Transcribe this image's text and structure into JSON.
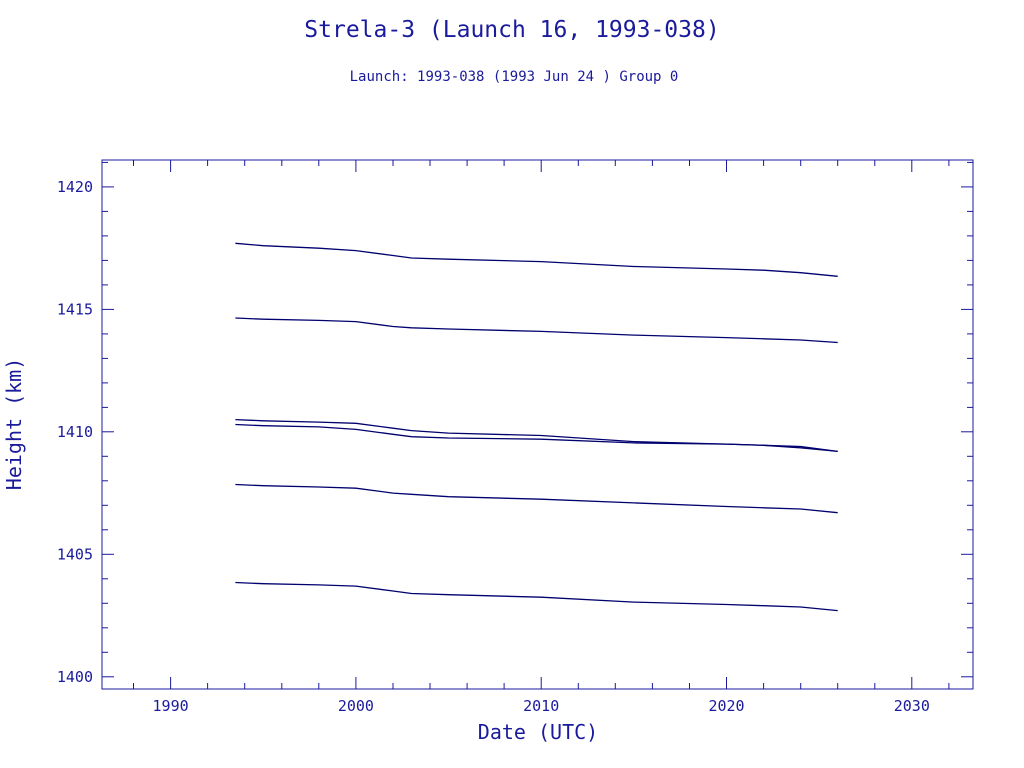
{
  "chart_data": {
    "type": "line",
    "title": "Strela-3 (Launch 16, 1993-038)",
    "subtitle": "Launch: 1993-038  (1993 Jun 24 )  Group 0",
    "xlabel": "Date (UTC)",
    "ylabel": "Height (km)",
    "xlim": [
      1986.3,
      2033.3
    ],
    "ylim": [
      1399.5,
      1421.1
    ],
    "xticks": [
      1990,
      2000,
      2010,
      2020,
      2030
    ],
    "yticks": [
      1400,
      1405,
      1410,
      1415,
      1420
    ],
    "grid": false,
    "legend": "none",
    "colors": {
      "axes": "#1a1a9c",
      "text": "#1a1a9c",
      "series": "#00006e"
    },
    "series": [
      {
        "x": [
          1993.5,
          1995,
          1998,
          2000,
          2002,
          2003,
          2005,
          2010,
          2015,
          2020,
          2022,
          2024,
          2026
        ],
        "y": [
          1417.7,
          1417.6,
          1417.5,
          1417.4,
          1417.2,
          1417.1,
          1417.05,
          1416.95,
          1416.75,
          1416.65,
          1416.6,
          1416.5,
          1416.35
        ]
      },
      {
        "x": [
          1993.5,
          1995,
          1998,
          2000,
          2002,
          2003,
          2005,
          2010,
          2015,
          2020,
          2022,
          2024,
          2026
        ],
        "y": [
          1414.65,
          1414.6,
          1414.55,
          1414.5,
          1414.3,
          1414.25,
          1414.2,
          1414.1,
          1413.95,
          1413.85,
          1413.8,
          1413.75,
          1413.65
        ]
      },
      {
        "x": [
          1993.5,
          1995,
          1998,
          2000,
          2002,
          2003,
          2005,
          2010,
          2015,
          2020,
          2022,
          2024,
          2026
        ],
        "y": [
          1410.5,
          1410.45,
          1410.4,
          1410.35,
          1410.15,
          1410.05,
          1409.95,
          1409.85,
          1409.6,
          1409.5,
          1409.45,
          1409.4,
          1409.2
        ]
      },
      {
        "x": [
          1993.5,
          1995,
          1998,
          2000,
          2002,
          2003,
          2005,
          2010,
          2015,
          2020,
          2022,
          2024,
          2026
        ],
        "y": [
          1410.3,
          1410.25,
          1410.2,
          1410.1,
          1409.9,
          1409.8,
          1409.75,
          1409.7,
          1409.55,
          1409.5,
          1409.45,
          1409.35,
          1409.2
        ]
      },
      {
        "x": [
          1993.5,
          1995,
          1998,
          2000,
          2002,
          2003,
          2005,
          2010,
          2015,
          2020,
          2022,
          2024,
          2026
        ],
        "y": [
          1407.85,
          1407.8,
          1407.75,
          1407.7,
          1407.5,
          1407.45,
          1407.35,
          1407.25,
          1407.1,
          1406.95,
          1406.9,
          1406.85,
          1406.7
        ]
      },
      {
        "x": [
          1993.5,
          1995,
          1998,
          2000,
          2002,
          2003,
          2005,
          2010,
          2015,
          2020,
          2022,
          2024,
          2026
        ],
        "y": [
          1403.85,
          1403.8,
          1403.75,
          1403.7,
          1403.5,
          1403.4,
          1403.35,
          1403.25,
          1403.05,
          1402.95,
          1402.9,
          1402.85,
          1402.7
        ]
      }
    ]
  }
}
